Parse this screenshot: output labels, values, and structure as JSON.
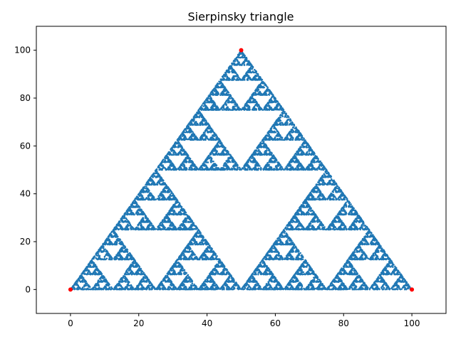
{
  "chart_data": {
    "type": "scatter",
    "title": "Sierpinsky triangle",
    "xlabel": "",
    "ylabel": "",
    "xlim": [
      -10,
      110
    ],
    "ylim": [
      -10,
      110
    ],
    "xticks": [
      0,
      20,
      40,
      60,
      80,
      100
    ],
    "yticks": [
      0,
      20,
      40,
      60,
      80,
      100
    ],
    "grid": false,
    "series": [
      {
        "color": "#1f77b4",
        "generator": "chaos-game",
        "point_count": 20000,
        "values": []
      },
      {
        "color": "#ff0000",
        "values": [
          [
            0,
            0
          ],
          [
            50,
            100
          ],
          [
            100,
            0
          ]
        ]
      }
    ]
  }
}
